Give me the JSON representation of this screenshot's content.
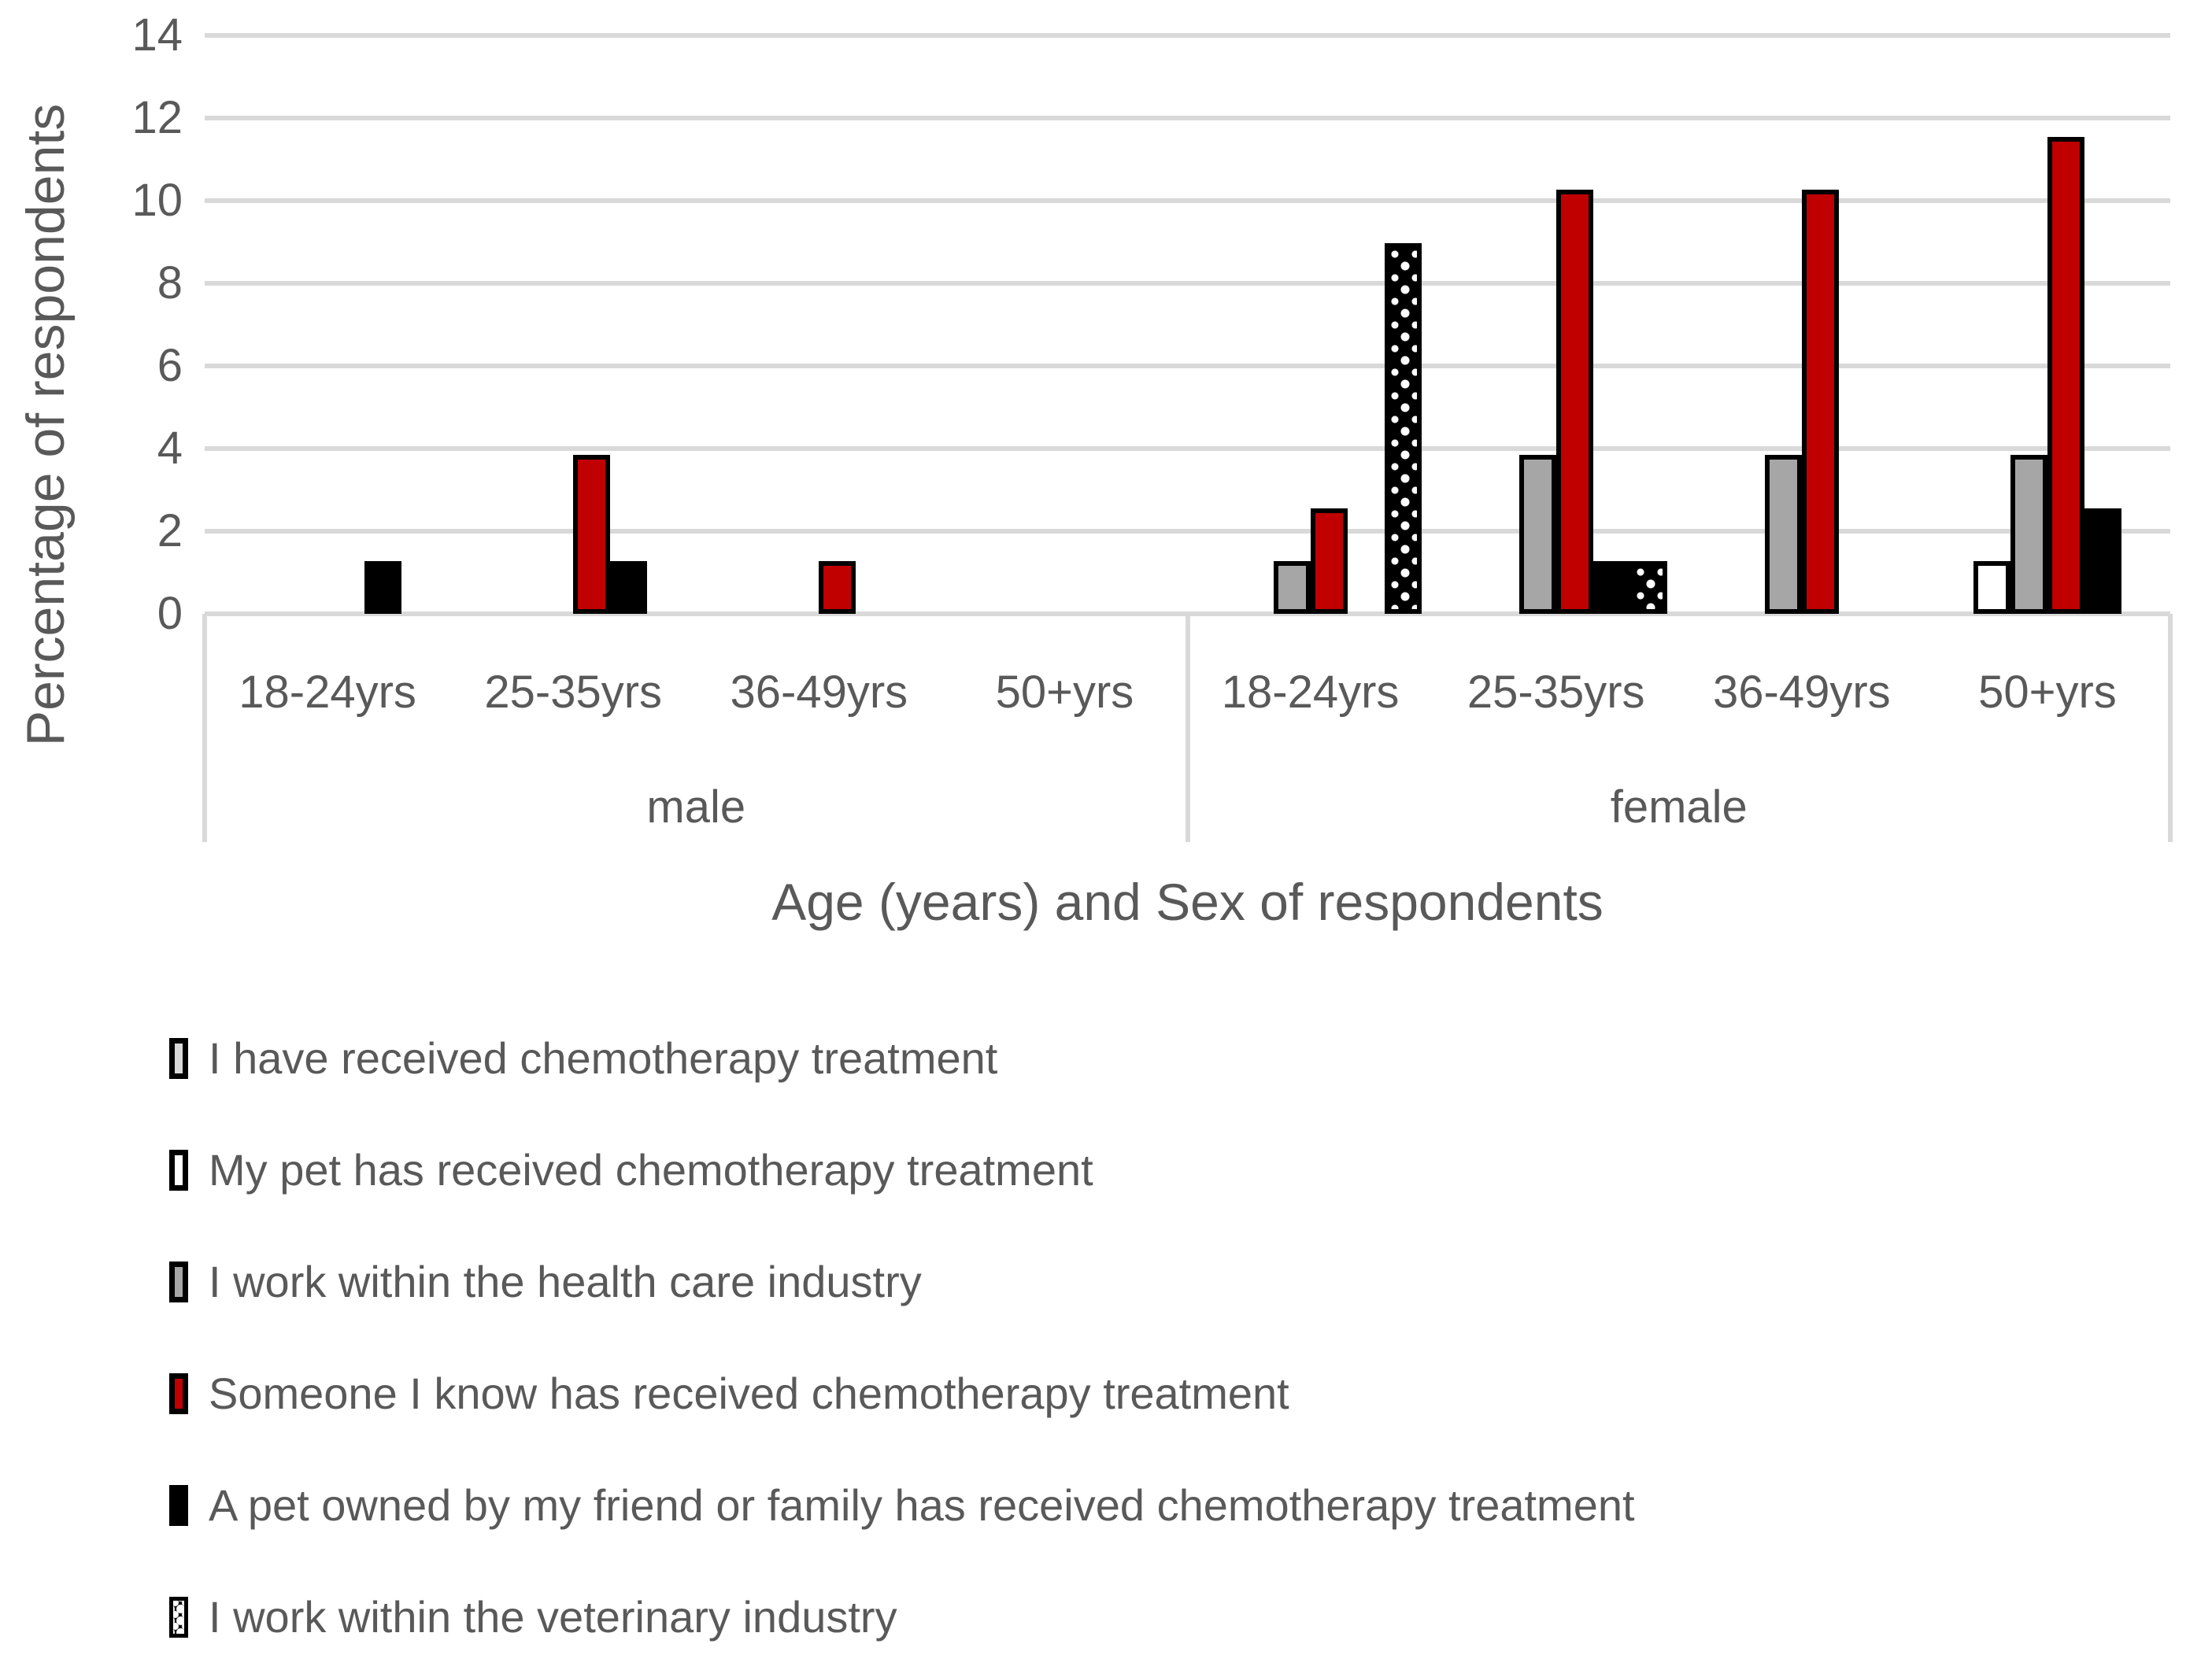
{
  "chart_data": {
    "type": "bar",
    "title": "",
    "ylabel": "Percentage of respondents",
    "xlabel": "Age (years) and Sex of respondents",
    "ylim": [
      0,
      14
    ],
    "yticks": [
      0,
      2,
      4,
      6,
      8,
      10,
      12,
      14
    ],
    "grid": true,
    "legend_position": "bottom-left",
    "group_labels": [
      "male",
      "female"
    ],
    "categories": [
      "18-24yrs",
      "25-35yrs",
      "36-49yrs",
      "50+yrs",
      "18-24yrs",
      "25-35yrs",
      "36-49yrs",
      "50+yrs"
    ],
    "series": [
      {
        "name": "I have received chemotherapy treatment",
        "color": "#D9D9D9",
        "pattern": "solid",
        "values": [
          0,
          0,
          0,
          0,
          0,
          0,
          0,
          0
        ]
      },
      {
        "name": "My pet has received chemotherapy treatment",
        "color": "#FFFFFF",
        "pattern": "solid",
        "values": [
          0,
          0,
          0,
          0,
          0,
          0,
          0,
          1.28
        ]
      },
      {
        "name": "I work within the health care industry",
        "color": "#A6A6A6",
        "pattern": "solid",
        "values": [
          0,
          0,
          0,
          0,
          1.28,
          3.85,
          3.85,
          3.85
        ]
      },
      {
        "name": "Someone I know has received chemotherapy treatment",
        "color": "#C00000",
        "pattern": "solid",
        "values": [
          0,
          3.85,
          1.28,
          0,
          2.56,
          10.26,
          10.26,
          11.54
        ]
      },
      {
        "name": "A pet owned by my friend or family has received chemotherapy treatment",
        "color": "#000000",
        "pattern": "solid",
        "values": [
          1.28,
          1.28,
          0,
          0,
          0,
          1.28,
          0,
          2.56
        ]
      },
      {
        "name": "I work within the veterinary industry",
        "color": "#000000",
        "pattern": "dots",
        "values": [
          0,
          0,
          0,
          0,
          8.97,
          1.28,
          0,
          0
        ]
      }
    ],
    "style": {
      "gridline_color": "#D9D9D9",
      "axis_text_color": "#595959",
      "bar_border_color": "#000000",
      "background_color": "#FFFFFF"
    }
  }
}
